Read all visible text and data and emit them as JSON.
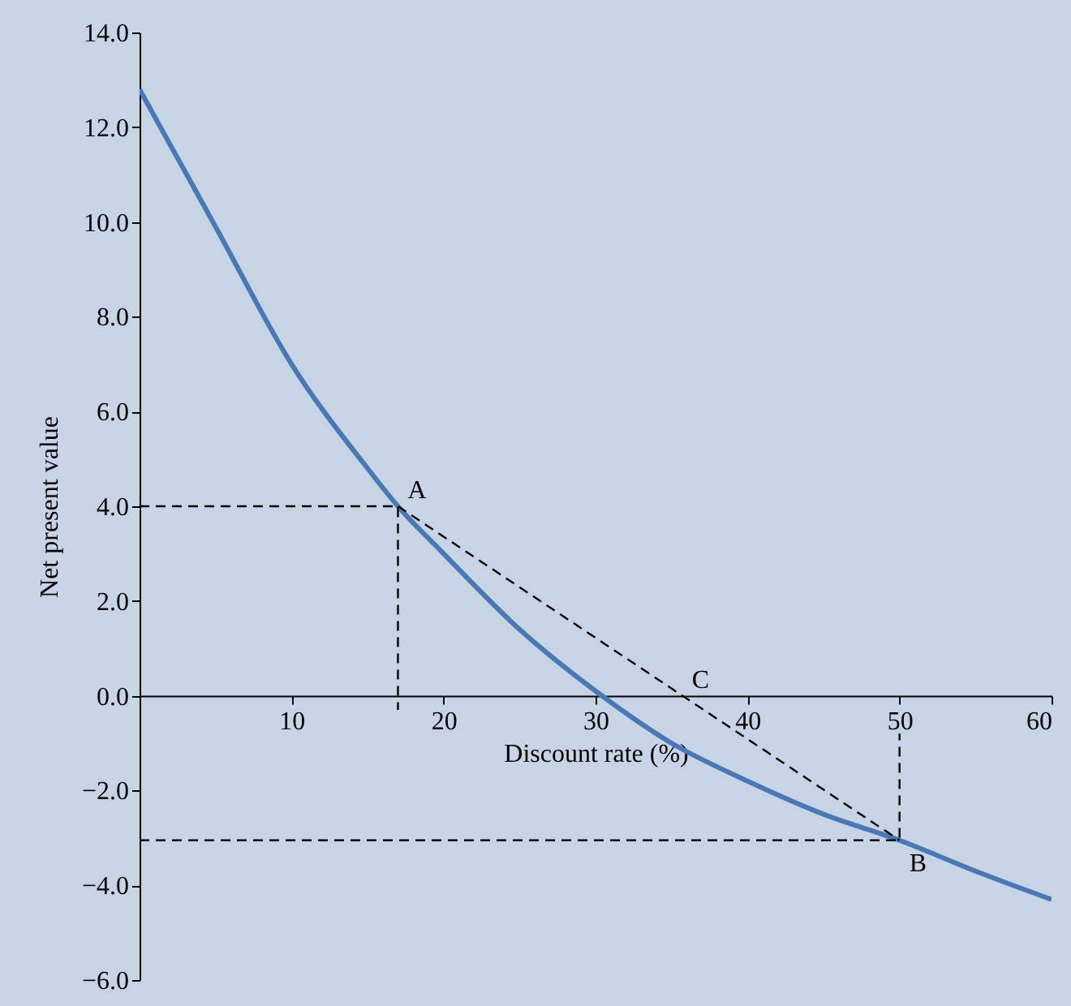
{
  "chart_data": {
    "type": "line",
    "xlabel": "Discount rate (%)",
    "ylabel": "Net present value",
    "xlim": [
      0,
      60
    ],
    "xticks": [
      10,
      20,
      30,
      40,
      50,
      60
    ],
    "ylim": [
      -6,
      14
    ],
    "yticks": [
      {
        "value": -6,
        "label": "−6.0"
      },
      {
        "value": -4,
        "label": "−4.0"
      },
      {
        "value": -2,
        "label": "−2.0"
      },
      {
        "value": 0,
        "label": "0.0"
      },
      {
        "value": 2,
        "label": "2.0"
      },
      {
        "value": 4,
        "label": "4.0"
      },
      {
        "value": 6,
        "label": "6.0"
      },
      {
        "value": 8,
        "label": "8.0"
      },
      {
        "value": 10,
        "label": "10.0"
      },
      {
        "value": 12,
        "label": "12.0"
      },
      {
        "value": 14,
        "label": "14.0"
      }
    ],
    "grid": false,
    "marker": "none",
    "series": [
      {
        "color": "#4a78b5",
        "line_style": "solid",
        "x": [
          0,
          5,
          10,
          15,
          17,
          20,
          25,
          30,
          35,
          40,
          45,
          50,
          55,
          60
        ],
        "values": [
          12.8,
          9.9,
          7.0,
          4.8,
          4.0,
          3.0,
          1.4,
          0.1,
          -1.0,
          -1.8,
          -2.5,
          -3.05,
          -3.7,
          -4.3
        ]
      },
      {
        "color": "#000000",
        "line_style": "dashed",
        "x": [
          17,
          50
        ],
        "values": [
          4.0,
          -3.05
        ]
      },
      {
        "color": "#000000",
        "line_style": "dashed",
        "x": [
          0,
          17,
          17
        ],
        "values": [
          4.0,
          4.0,
          -0.3
        ]
      },
      {
        "color": "#000000",
        "line_style": "dashed",
        "x": [
          0,
          50,
          50
        ],
        "values": [
          -3.05,
          -3.05,
          -0.8
        ]
      }
    ],
    "annotations": [
      {
        "text": "A",
        "x": 17,
        "y": 4.0
      },
      {
        "text": "B",
        "x": 50,
        "y": -3.05
      },
      {
        "text": "C",
        "x": 35.7,
        "y": 0
      }
    ]
  }
}
